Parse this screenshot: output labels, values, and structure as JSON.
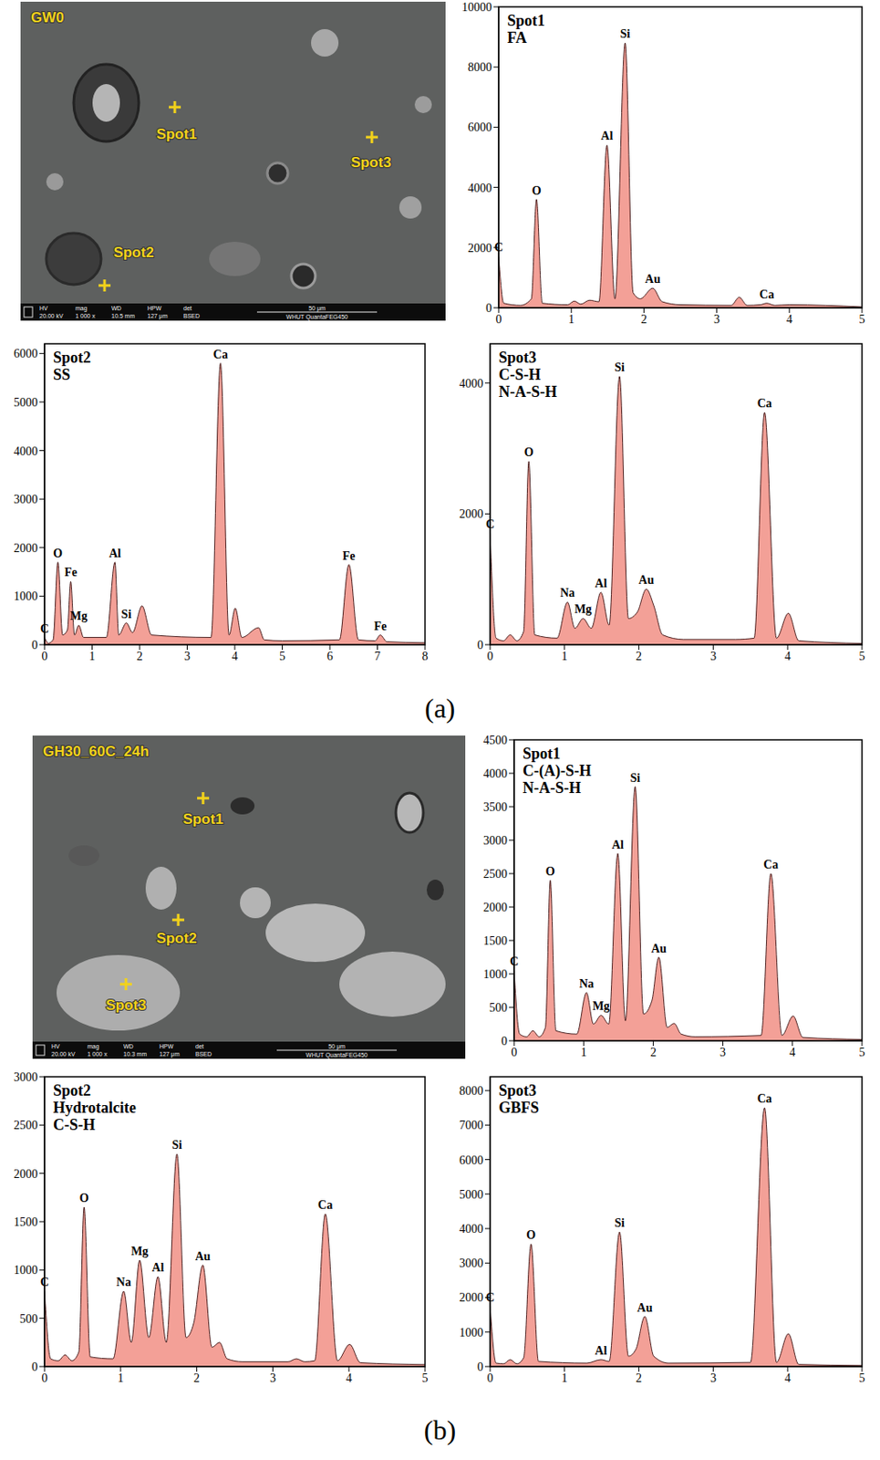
{
  "panel_labels": [
    "(a)",
    "(b)"
  ],
  "images": [
    {
      "label": "GW0",
      "spots": [
        "Spot1",
        "Spot2",
        "Spot3"
      ],
      "info": {
        "fields": [
          "HV",
          "mag",
          "WD",
          "HPW",
          "det"
        ],
        "values": [
          "20.00 kV",
          "1 000 x",
          "10.5 mm",
          "127 μm",
          "BSED"
        ],
        "scale": "50 μm",
        "instrument": "WHUT QuantaFEG450"
      }
    },
    {
      "label": "GH30_60C_24h",
      "spots": [
        "Spot1",
        "Spot2",
        "Spot3"
      ],
      "info": {
        "fields": [
          "HV",
          "mag",
          "WD",
          "HPW",
          "det"
        ],
        "values": [
          "20.00 kV",
          "1 000 x",
          "10.3 mm",
          "127 μm",
          "BSED"
        ],
        "scale": "50 μm",
        "instrument": "WHUT QuantaFEG450"
      }
    }
  ],
  "chart_data": [
    {
      "type": "area",
      "title": "Spot1",
      "subtitle": [
        "FA"
      ],
      "color": "#f3a097",
      "x": [
        0,
        0.07,
        0.3,
        0.45,
        0.52,
        0.6,
        0.95,
        1.04,
        1.13,
        1.25,
        1.38,
        1.49,
        1.6,
        1.74,
        1.85,
        1.95,
        2.12,
        2.25,
        2.5,
        3.2,
        3.31,
        3.42,
        3.6,
        3.69,
        3.8,
        4,
        5
      ],
      "values": [
        1700,
        150,
        80,
        300,
        3600,
        150,
        100,
        220,
        120,
        250,
        200,
        5400,
        300,
        8800,
        500,
        300,
        650,
        200,
        100,
        80,
        350,
        80,
        100,
        150,
        80,
        100,
        30
      ],
      "xlim": [
        0,
        5
      ],
      "xticks": [
        0,
        1,
        2,
        3,
        4,
        5
      ],
      "ylim": [
        0,
        10000
      ],
      "yticks": [
        0,
        2000,
        4000,
        6000,
        8000,
        10000
      ],
      "annotations": [
        {
          "text": "C",
          "x": 0,
          "y": 1700
        },
        {
          "text": "O",
          "x": 0.52,
          "y": 3600
        },
        {
          "text": "Al",
          "x": 1.49,
          "y": 5400
        },
        {
          "text": "Si",
          "x": 1.74,
          "y": 8800
        },
        {
          "text": "Au",
          "x": 2.12,
          "y": 650
        },
        {
          "text": "Ca",
          "x": 3.69,
          "y": 150
        }
      ]
    },
    {
      "type": "area",
      "title": "Spot2",
      "subtitle": [
        "SS"
      ],
      "color": "#f3a097",
      "x": [
        0,
        0.08,
        0.18,
        0.28,
        0.38,
        0.48,
        0.55,
        0.63,
        0.72,
        0.82,
        1.3,
        1.48,
        1.56,
        1.72,
        1.85,
        2.05,
        2.25,
        3.5,
        3.7,
        3.88,
        4.01,
        4.15,
        4.5,
        4.62,
        5,
        6.2,
        6.4,
        6.6,
        6.95,
        7.06,
        7.2,
        8
      ],
      "values": [
        150,
        30,
        100,
        1700,
        200,
        300,
        1300,
        200,
        400,
        150,
        150,
        1700,
        200,
        450,
        250,
        800,
        200,
        150,
        5800,
        200,
        750,
        150,
        350,
        100,
        80,
        100,
        1650,
        100,
        80,
        200,
        60,
        40
      ],
      "xlim": [
        0,
        8
      ],
      "xticks": [
        0,
        1,
        2,
        3,
        4,
        5,
        6,
        7,
        8
      ],
      "ylim": [
        0,
        6200
      ],
      "yticks": [
        0,
        1000,
        2000,
        3000,
        4000,
        5000,
        6000
      ],
      "annotations": [
        {
          "text": "C",
          "x": 0,
          "y": 150
        },
        {
          "text": "O",
          "x": 0.28,
          "y": 1700
        },
        {
          "text": "Fe",
          "x": 0.55,
          "y": 1300
        },
        {
          "text": "Mg",
          "x": 0.72,
          "y": 400
        },
        {
          "text": "Al",
          "x": 1.48,
          "y": 1700
        },
        {
          "text": "Si",
          "x": 1.72,
          "y": 450
        },
        {
          "text": "Ca",
          "x": 3.7,
          "y": 5800
        },
        {
          "text": "Fe",
          "x": 6.4,
          "y": 1650
        },
        {
          "text": "Fe",
          "x": 7.06,
          "y": 200
        }
      ]
    },
    {
      "type": "area",
      "title": "Spot3",
      "subtitle": [
        "C-S-H",
        "N-A-S-H"
      ],
      "color": "#f3a097",
      "x": [
        0,
        0.08,
        0.18,
        0.27,
        0.36,
        0.45,
        0.52,
        0.6,
        0.9,
        1.04,
        1.14,
        1.25,
        1.36,
        1.49,
        1.6,
        1.74,
        1.86,
        1.98,
        2.1,
        2.2,
        2.32,
        2.6,
        3.3,
        3.55,
        3.69,
        3.85,
        4.01,
        4.15,
        5
      ],
      "values": [
        1700,
        100,
        60,
        150,
        60,
        200,
        2800,
        150,
        100,
        650,
        250,
        400,
        250,
        800,
        300,
        4100,
        400,
        500,
        850,
        600,
        150,
        80,
        80,
        100,
        3550,
        100,
        480,
        60,
        20
      ],
      "xlim": [
        0,
        5
      ],
      "xticks": [
        0,
        1,
        2,
        3,
        4,
        5
      ],
      "ylim": [
        0,
        4600
      ],
      "yticks": [
        0,
        2000,
        4000
      ],
      "annotations": [
        {
          "text": "C",
          "x": 0,
          "y": 1700
        },
        {
          "text": "O",
          "x": 0.52,
          "y": 2800
        },
        {
          "text": "Na",
          "x": 1.04,
          "y": 650
        },
        {
          "text": "Mg",
          "x": 1.25,
          "y": 400
        },
        {
          "text": "Al",
          "x": 1.49,
          "y": 800
        },
        {
          "text": "Si",
          "x": 1.74,
          "y": 4100
        },
        {
          "text": "Au",
          "x": 2.1,
          "y": 850
        },
        {
          "text": "Ca",
          "x": 3.69,
          "y": 3550
        }
      ]
    },
    {
      "type": "area",
      "title": "Spot1",
      "subtitle": [
        "C-(A)-S-H",
        "N-A-S-H"
      ],
      "color": "#f3a097",
      "x": [
        0,
        0.08,
        0.18,
        0.27,
        0.36,
        0.45,
        0.52,
        0.6,
        0.9,
        1.04,
        1.14,
        1.25,
        1.36,
        1.49,
        1.6,
        1.74,
        1.86,
        1.98,
        2.08,
        2.2,
        2.3,
        2.4,
        2.6,
        3.55,
        3.69,
        3.85,
        4.01,
        4.15,
        5
      ],
      "values": [
        1050,
        100,
        60,
        150,
        60,
        200,
        2400,
        150,
        100,
        720,
        250,
        380,
        250,
        2800,
        300,
        3800,
        400,
        600,
        1250,
        200,
        260,
        100,
        60,
        80,
        2500,
        80,
        370,
        50,
        20
      ],
      "xlim": [
        0,
        5
      ],
      "xticks": [
        0,
        1,
        2,
        3,
        4,
        5
      ],
      "ylim": [
        0,
        4500
      ],
      "yticks": [
        0,
        500,
        1000,
        1500,
        2000,
        2500,
        3000,
        3500,
        4000,
        4500
      ],
      "annotations": [
        {
          "text": "C",
          "x": 0,
          "y": 1050
        },
        {
          "text": "O",
          "x": 0.52,
          "y": 2400
        },
        {
          "text": "Na",
          "x": 1.04,
          "y": 720
        },
        {
          "text": "Mg",
          "x": 1.25,
          "y": 380
        },
        {
          "text": "Al",
          "x": 1.49,
          "y": 2800
        },
        {
          "text": "Si",
          "x": 1.74,
          "y": 3800
        },
        {
          "text": "Au",
          "x": 2.08,
          "y": 1250
        },
        {
          "text": "Ca",
          "x": 3.69,
          "y": 2500
        }
      ]
    },
    {
      "type": "area",
      "title": "Spot2",
      "subtitle": [
        "Hydrotalcite",
        "C-S-H"
      ],
      "color": "#f3a097",
      "x": [
        0,
        0.08,
        0.18,
        0.27,
        0.36,
        0.45,
        0.52,
        0.6,
        0.9,
        1.04,
        1.14,
        1.25,
        1.37,
        1.49,
        1.6,
        1.74,
        1.86,
        1.96,
        2.08,
        2.2,
        2.3,
        2.4,
        2.6,
        3.2,
        3.31,
        3.42,
        3.55,
        3.69,
        3.85,
        4.01,
        4.15,
        5
      ],
      "values": [
        780,
        80,
        60,
        120,
        60,
        150,
        1650,
        100,
        80,
        780,
        250,
        1100,
        300,
        930,
        250,
        2200,
        300,
        450,
        1050,
        200,
        250,
        80,
        50,
        50,
        80,
        50,
        60,
        1580,
        60,
        230,
        40,
        20
      ],
      "xlim": [
        0,
        5
      ],
      "xticks": [
        0,
        1,
        2,
        3,
        4,
        5
      ],
      "ylim": [
        0,
        3000
      ],
      "yticks": [
        0,
        500,
        1000,
        1500,
        2000,
        2500,
        3000
      ],
      "annotations": [
        {
          "text": "C",
          "x": 0,
          "y": 780
        },
        {
          "text": "O",
          "x": 0.52,
          "y": 1650
        },
        {
          "text": "Na",
          "x": 1.04,
          "y": 780
        },
        {
          "text": "Mg",
          "x": 1.25,
          "y": 1100
        },
        {
          "text": "Al",
          "x": 1.49,
          "y": 930
        },
        {
          "text": "Si",
          "x": 1.74,
          "y": 2200
        },
        {
          "text": "Au",
          "x": 2.08,
          "y": 1050
        },
        {
          "text": "Ca",
          "x": 3.69,
          "y": 1580
        }
      ]
    },
    {
      "type": "area",
      "title": "Spot3",
      "subtitle": [
        "GBFS"
      ],
      "color": "#f3a097",
      "x": [
        0,
        0.08,
        0.18,
        0.27,
        0.36,
        0.45,
        0.55,
        0.65,
        1.3,
        1.49,
        1.6,
        1.74,
        1.86,
        1.96,
        2.08,
        2.2,
        2.4,
        3.5,
        3.69,
        3.85,
        4.01,
        4.15,
        5
      ],
      "values": [
        1750,
        100,
        80,
        200,
        80,
        250,
        3550,
        150,
        100,
        200,
        150,
        3900,
        300,
        500,
        1450,
        300,
        100,
        120,
        7500,
        120,
        950,
        60,
        30
      ],
      "xlim": [
        0,
        5
      ],
      "xticks": [
        0,
        1,
        2,
        3,
        4,
        5
      ],
      "ylim": [
        0,
        8400
      ],
      "yticks": [
        0,
        1000,
        2000,
        3000,
        4000,
        5000,
        6000,
        7000,
        8000
      ],
      "annotations": [
        {
          "text": "C",
          "x": 0,
          "y": 1750
        },
        {
          "text": "O",
          "x": 0.55,
          "y": 3550
        },
        {
          "text": "Al",
          "x": 1.49,
          "y": 200
        },
        {
          "text": "Si",
          "x": 1.74,
          "y": 3900
        },
        {
          "text": "Au",
          "x": 2.08,
          "y": 1450
        },
        {
          "text": "Ca",
          "x": 3.69,
          "y": 7500
        }
      ]
    }
  ]
}
